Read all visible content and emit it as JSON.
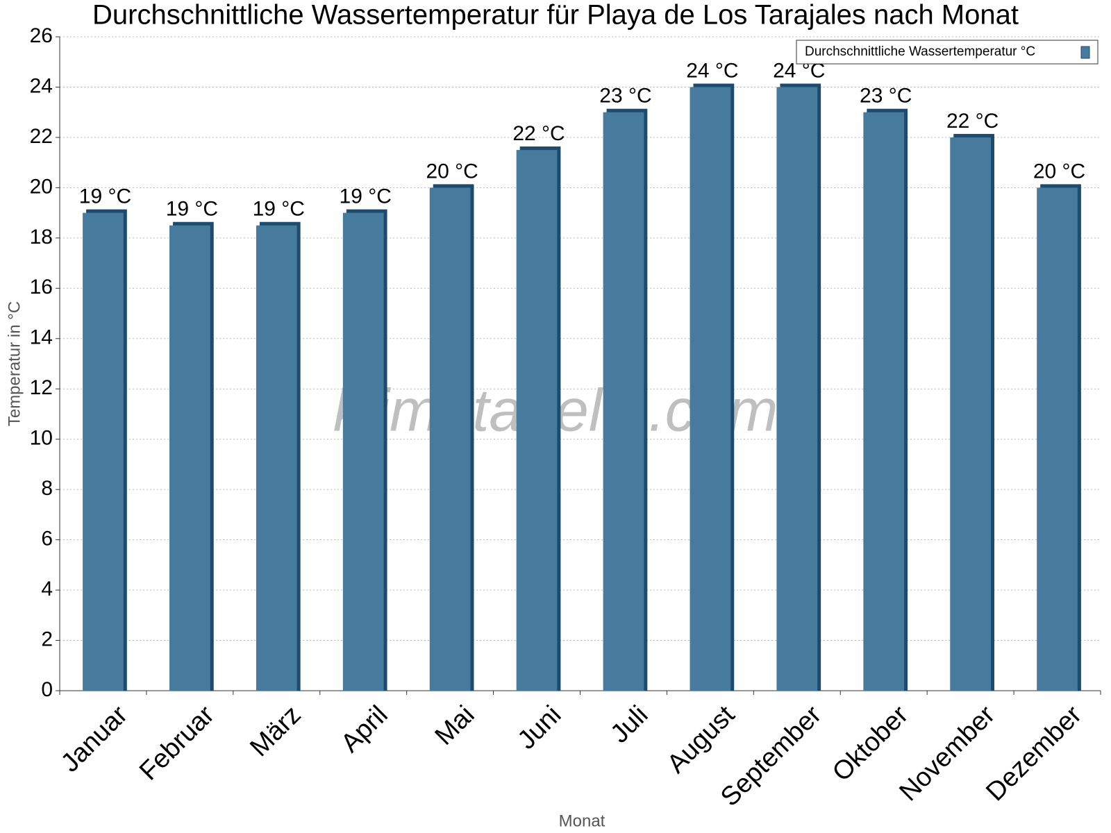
{
  "chart_data": {
    "type": "bar",
    "title": "Durchschnittliche Wassertemperatur für Playa de Los Tarajales nach Monat",
    "watermark": "klimatabelle.com",
    "x_label": "Monat",
    "y_label": "Temperatur in °C",
    "categories": [
      "Januar",
      "Februar",
      "März",
      "April",
      "Mai",
      "Juni",
      "Juli",
      "August",
      "September",
      "Oktober",
      "November",
      "Dezember"
    ],
    "series": [
      {
        "name": "Durchschnittliche Wassertemperatur °C",
        "color": "#467b9d",
        "values": [
          19,
          18.5,
          18.5,
          19,
          20,
          21.5,
          23,
          24,
          24,
          23,
          22,
          20
        ],
        "value_labels": [
          "19 °C",
          "19 °C",
          "19 °C",
          "19 °C",
          "20 °C",
          "22 °C",
          "23 °C",
          "24 °C",
          "24 °C",
          "23 °C",
          "22 °C",
          "20 °C"
        ]
      }
    ],
    "ylim": [
      0,
      26
    ],
    "yticks": [
      0,
      2,
      4,
      6,
      8,
      10,
      12,
      14,
      16,
      18,
      20,
      22,
      24,
      26
    ],
    "grid": true,
    "legend": "upper right"
  }
}
